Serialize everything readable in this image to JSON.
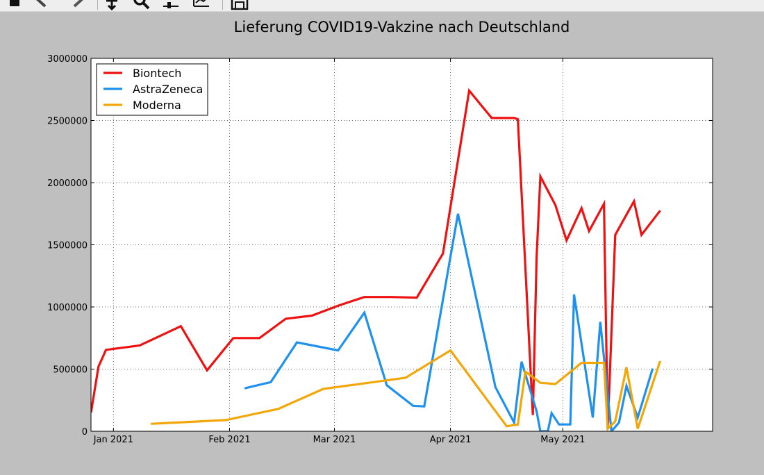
{
  "toolbar": {
    "buttons": [
      {
        "name": "home-button",
        "icon": "home-icon"
      },
      {
        "name": "back-button",
        "icon": "arrow-left-icon"
      },
      {
        "name": "forward-button",
        "icon": "arrow-right-icon"
      },
      {
        "name": "pan-button",
        "icon": "move-icon"
      },
      {
        "name": "zoom-button",
        "icon": "magnifier-icon"
      },
      {
        "name": "subplots-button",
        "icon": "sliders-icon"
      },
      {
        "name": "edit-axes-button",
        "icon": "chart-edit-icon"
      },
      {
        "name": "save-button",
        "icon": "floppy-disk-icon"
      }
    ]
  },
  "chart_data": {
    "type": "line",
    "title": "Lieferung COVID19-Vakzine nach Deutschland",
    "xlabel": "",
    "ylabel": "",
    "x_type": "date",
    "xlim": [
      "2020-12-26",
      "2021-06-10"
    ],
    "ylim": [
      0,
      3000000
    ],
    "y_ticks": [
      0,
      500000,
      1000000,
      1500000,
      2000000,
      2500000,
      3000000
    ],
    "y_tick_labels": [
      "0",
      "500000",
      "1000000",
      "1500000",
      "2000000",
      "2500000",
      "3000000"
    ],
    "x_ticks": [
      "2021-01-01",
      "2021-02-01",
      "2021-03-01",
      "2021-04-01",
      "2021-05-01"
    ],
    "x_tick_labels": [
      "Jan 2021",
      "Feb 2021",
      "Mar 2021",
      "Apr 2021",
      "May 2021"
    ],
    "grid": true,
    "legend": "top-left",
    "series": [
      {
        "name": "Biontech",
        "color": "#ee1111",
        "points": [
          [
            "2020-12-26",
            150000
          ],
          [
            "2020-12-28",
            520000
          ],
          [
            "2020-12-30",
            655000
          ],
          [
            "2021-01-08",
            690000
          ],
          [
            "2021-01-19",
            845000
          ],
          [
            "2021-01-26",
            490000
          ],
          [
            "2021-02-02",
            750000
          ],
          [
            "2021-02-09",
            750000
          ],
          [
            "2021-02-16",
            905000
          ],
          [
            "2021-02-23",
            930000
          ],
          [
            "2021-03-02",
            1010000
          ],
          [
            "2021-03-09",
            1080000
          ],
          [
            "2021-03-16",
            1080000
          ],
          [
            "2021-03-23",
            1075000
          ],
          [
            "2021-03-30",
            1430000
          ],
          [
            "2021-04-06",
            2740000
          ],
          [
            "2021-04-12",
            2520000
          ],
          [
            "2021-04-18",
            2520000
          ],
          [
            "2021-04-19",
            2510000
          ],
          [
            "2021-04-23",
            130000
          ],
          [
            "2021-04-24",
            1400000
          ],
          [
            "2021-04-25",
            2050000
          ],
          [
            "2021-04-29",
            1820000
          ],
          [
            "2021-05-02",
            1535000
          ],
          [
            "2021-05-06",
            1795000
          ],
          [
            "2021-05-08",
            1610000
          ],
          [
            "2021-05-12",
            1830000
          ],
          [
            "2021-05-13",
            20000
          ],
          [
            "2021-05-15",
            1580000
          ],
          [
            "2021-05-20",
            1850000
          ],
          [
            "2021-05-22",
            1580000
          ],
          [
            "2021-05-27",
            1775000
          ]
        ]
      },
      {
        "name": "AstraZeneca",
        "color": "#1e90ee",
        "points": [
          [
            "2021-02-05",
            345000
          ],
          [
            "2021-02-12",
            395000
          ],
          [
            "2021-02-19",
            715000
          ],
          [
            "2021-03-02",
            650000
          ],
          [
            "2021-03-09",
            955000
          ],
          [
            "2021-03-15",
            370000
          ],
          [
            "2021-03-22",
            205000
          ],
          [
            "2021-03-25",
            200000
          ],
          [
            "2021-04-03",
            1750000
          ],
          [
            "2021-04-13",
            355000
          ],
          [
            "2021-04-18",
            70000
          ],
          [
            "2021-04-20",
            560000
          ],
          [
            "2021-04-24",
            160000
          ],
          [
            "2021-04-25",
            0
          ],
          [
            "2021-04-27",
            0
          ],
          [
            "2021-04-28",
            145000
          ],
          [
            "2021-04-30",
            55000
          ],
          [
            "2021-05-01",
            55000
          ],
          [
            "2021-05-03",
            55000
          ],
          [
            "2021-05-04",
            1100000
          ],
          [
            "2021-05-09",
            110000
          ],
          [
            "2021-05-11",
            880000
          ],
          [
            "2021-05-14",
            0
          ],
          [
            "2021-05-16",
            70000
          ],
          [
            "2021-05-18",
            365000
          ],
          [
            "2021-05-21",
            110000
          ],
          [
            "2021-05-25",
            505000
          ]
        ]
      },
      {
        "name": "Moderna",
        "color": "#f2a608",
        "points": [
          [
            "2021-01-11",
            60000
          ],
          [
            "2021-01-31",
            90000
          ],
          [
            "2021-02-14",
            180000
          ],
          [
            "2021-02-26",
            340000
          ],
          [
            "2021-03-20",
            430000
          ],
          [
            "2021-04-01",
            650000
          ],
          [
            "2021-04-16",
            40000
          ],
          [
            "2021-04-19",
            55000
          ],
          [
            "2021-04-21",
            480000
          ],
          [
            "2021-04-25",
            390000
          ],
          [
            "2021-04-29",
            380000
          ],
          [
            "2021-05-06",
            550000
          ],
          [
            "2021-05-12",
            550000
          ],
          [
            "2021-05-13",
            20000
          ],
          [
            "2021-05-15",
            80000
          ],
          [
            "2021-05-18",
            515000
          ],
          [
            "2021-05-21",
            20000
          ],
          [
            "2021-05-27",
            565000
          ]
        ]
      }
    ]
  }
}
